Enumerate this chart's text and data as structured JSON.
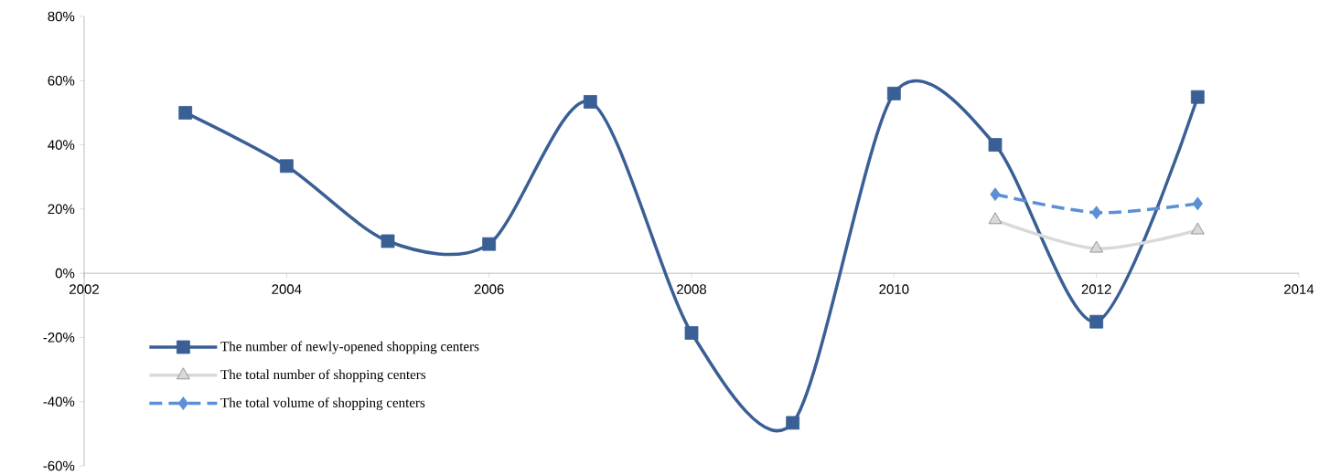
{
  "chart_data": {
    "type": "line",
    "x": [
      2003,
      2004,
      2005,
      2006,
      2007,
      2008,
      2009,
      2010,
      2011,
      2012,
      2013
    ],
    "series": [
      {
        "name": "The number of newly-opened shopping centers",
        "color": "#3a5f95",
        "marker": "square",
        "line_style": "solid",
        "values": [
          50,
          33.4,
          10,
          9.1,
          53.4,
          -18.6,
          -46.6,
          56,
          40,
          -15.1,
          54.9
        ]
      },
      {
        "name": "The total number of shopping centers",
        "color": "#d9d9d9",
        "marker": "triangle",
        "line_style": "solid",
        "values": [
          null,
          null,
          null,
          null,
          null,
          null,
          null,
          null,
          16.6,
          7.7,
          13.4
        ]
      },
      {
        "name": "The total volume of shopping centers",
        "color": "#5b8fd6",
        "marker": "diamond",
        "line_style": "dashed",
        "values": [
          null,
          null,
          null,
          null,
          null,
          null,
          null,
          null,
          24.6,
          18.9,
          21.7
        ]
      }
    ],
    "xlim": [
      2002,
      2014
    ],
    "xticks": [
      2002,
      2004,
      2006,
      2008,
      2010,
      2012,
      2014
    ],
    "ylim": [
      -60,
      80
    ],
    "yticks": [
      {
        "value": -60,
        "label": "-60%"
      },
      {
        "value": -40,
        "label": "-40%"
      },
      {
        "value": -20,
        "label": "-20%"
      },
      {
        "value": 0,
        "label": "0%"
      },
      {
        "value": 20,
        "label": "20%"
      },
      {
        "value": 40,
        "label": "40%"
      },
      {
        "value": 60,
        "label": "60%"
      },
      {
        "value": 80,
        "label": "80%"
      }
    ],
    "legend": "bottom left",
    "grid": false
  }
}
